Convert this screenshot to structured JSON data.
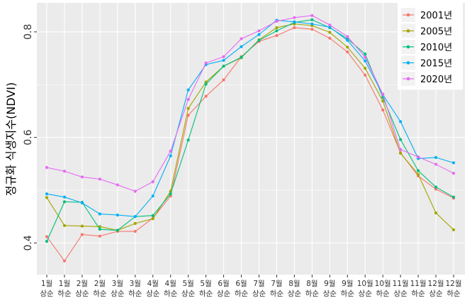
{
  "chart_data": {
    "type": "line",
    "ylabel": "정규화 식생지수(NDVI)",
    "xlabel": "",
    "ylim": [
      0.34,
      0.855
    ],
    "y_ticks": [
      0.4,
      0.6,
      0.8
    ],
    "y_tick_labels": [
      "0.4",
      "0.6",
      "0.8"
    ],
    "grid": true,
    "legend_position": "top-right",
    "categories": [
      {
        "line1": "1월",
        "line2": "상순"
      },
      {
        "line1": "1월",
        "line2": "하순"
      },
      {
        "line1": "2월",
        "line2": "상순"
      },
      {
        "line1": "2월",
        "line2": "하순"
      },
      {
        "line1": "3월",
        "line2": "상순"
      },
      {
        "line1": "3월",
        "line2": "하순"
      },
      {
        "line1": "4월",
        "line2": "상순"
      },
      {
        "line1": "4월",
        "line2": "하순"
      },
      {
        "line1": "5월",
        "line2": "상순"
      },
      {
        "line1": "5월",
        "line2": "하순"
      },
      {
        "line1": "6월",
        "line2": "상순"
      },
      {
        "line1": "6월",
        "line2": "하순"
      },
      {
        "line1": "7월",
        "line2": "상순"
      },
      {
        "line1": "7월",
        "line2": "하순"
      },
      {
        "line1": "8월",
        "line2": "상순"
      },
      {
        "line1": "8월",
        "line2": "하순"
      },
      {
        "line1": "9월",
        "line2": "상순"
      },
      {
        "line1": "9월",
        "line2": "하순"
      },
      {
        "line1": "10월",
        "line2": "상순"
      },
      {
        "line1": "10월",
        "line2": "하순"
      },
      {
        "line1": "11월",
        "line2": "상순"
      },
      {
        "line1": "11월",
        "line2": "하순"
      },
      {
        "line1": "12월",
        "line2": "상순"
      },
      {
        "line1": "12월",
        "line2": "하순"
      }
    ],
    "series": [
      {
        "name": "2001년",
        "color": "#F8766D",
        "values": [
          0.412,
          0.366,
          0.416,
          0.413,
          0.422,
          0.422,
          0.447,
          0.489,
          0.642,
          0.678,
          0.709,
          0.753,
          0.782,
          0.793,
          0.808,
          0.805,
          0.788,
          0.762,
          0.718,
          0.652,
          0.571,
          0.527,
          0.502,
          0.485
        ]
      },
      {
        "name": "2005년",
        "color": "#A3A500",
        "values": [
          0.486,
          0.433,
          0.432,
          0.431,
          0.424,
          0.437,
          0.446,
          0.498,
          0.655,
          0.705,
          0.735,
          0.751,
          0.785,
          0.808,
          0.815,
          0.812,
          0.799,
          0.771,
          0.731,
          0.669,
          0.57,
          0.53,
          0.457,
          0.425
        ]
      },
      {
        "name": "2010년",
        "color": "#00BF7D",
        "values": [
          0.403,
          0.478,
          0.477,
          0.426,
          0.424,
          0.45,
          0.452,
          0.493,
          0.595,
          0.701,
          0.735,
          0.752,
          0.784,
          0.802,
          0.818,
          0.823,
          0.808,
          0.787,
          0.758,
          0.676,
          0.596,
          0.537,
          0.506,
          0.487
        ]
      },
      {
        "name": "2015년",
        "color": "#00B0F6",
        "values": [
          0.493,
          0.487,
          0.476,
          0.455,
          0.453,
          0.45,
          0.489,
          0.565,
          0.69,
          0.738,
          0.746,
          0.772,
          0.795,
          0.822,
          0.819,
          0.815,
          0.809,
          0.784,
          0.745,
          0.681,
          0.63,
          0.56,
          0.562,
          0.552
        ]
      },
      {
        "name": "2020년",
        "color": "#E76BF3",
        "values": [
          0.543,
          0.536,
          0.525,
          0.521,
          0.51,
          0.498,
          0.516,
          0.574,
          0.672,
          0.741,
          0.753,
          0.787,
          0.802,
          0.82,
          0.827,
          0.831,
          0.813,
          0.791,
          0.752,
          0.682,
          0.577,
          0.563,
          0.549,
          0.532
        ]
      }
    ]
  }
}
